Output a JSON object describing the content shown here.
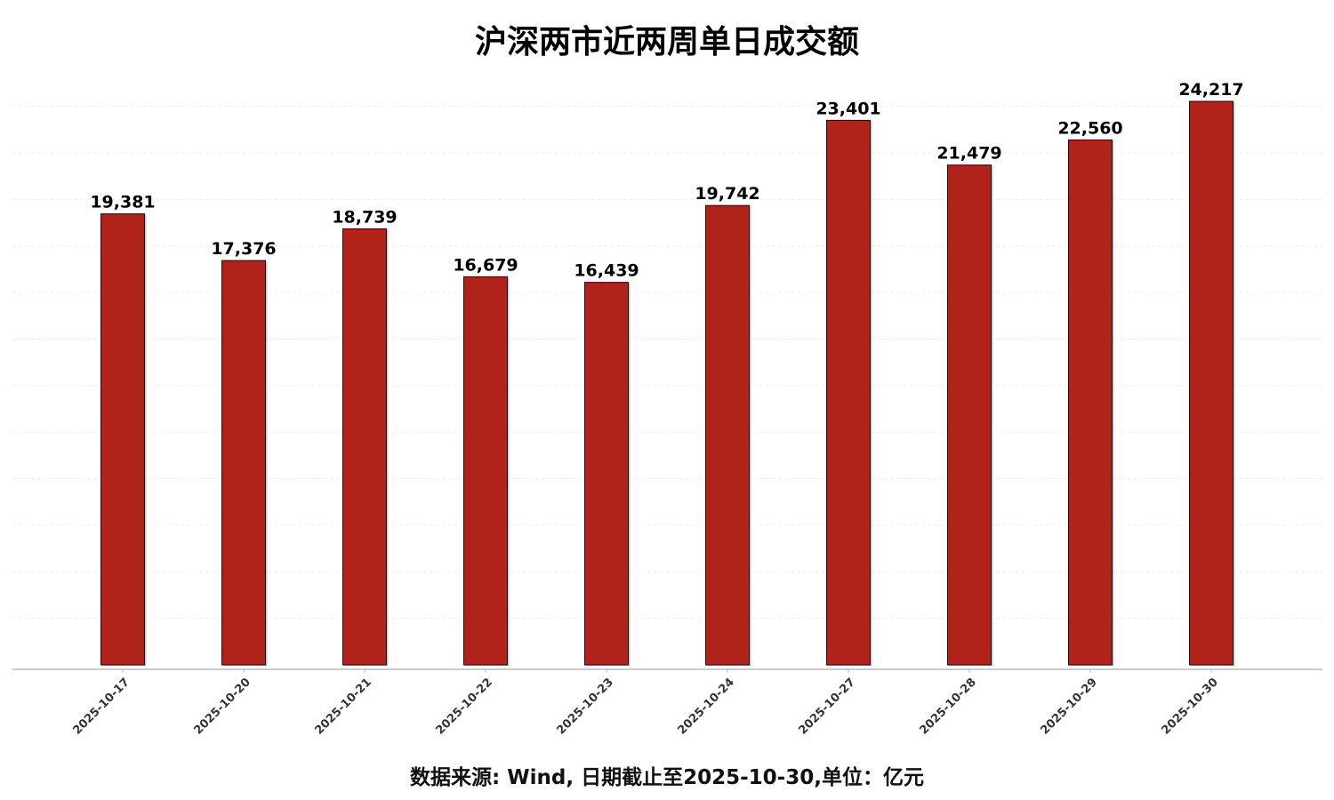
{
  "chart_data": {
    "type": "bar",
    "title": "沪深两市近两周单日成交额",
    "categories": [
      "2025-10-17",
      "2025-10-20",
      "2025-10-21",
      "2025-10-22",
      "2025-10-23",
      "2025-10-24",
      "2025-10-27",
      "2025-10-28",
      "2025-10-29",
      "2025-10-30"
    ],
    "values": [
      19381,
      17376,
      18739,
      16679,
      16439,
      19742,
      23401,
      21479,
      22560,
      24217
    ],
    "data_labels": [
      "19,381",
      "17,376",
      "18,739",
      "16,679",
      "16,439",
      "19,742",
      "23,401",
      "21,479",
      "22,560",
      "24,217"
    ],
    "xlabel": "",
    "ylabel": "",
    "ylim": [
      0,
      24800
    ],
    "grid": true,
    "bar_color": "#B0231A",
    "bar_edge_color": "#1a0a08",
    "footnote": "数据来源: Wind, 日期截止至2025-10-30,单位：亿元"
  }
}
